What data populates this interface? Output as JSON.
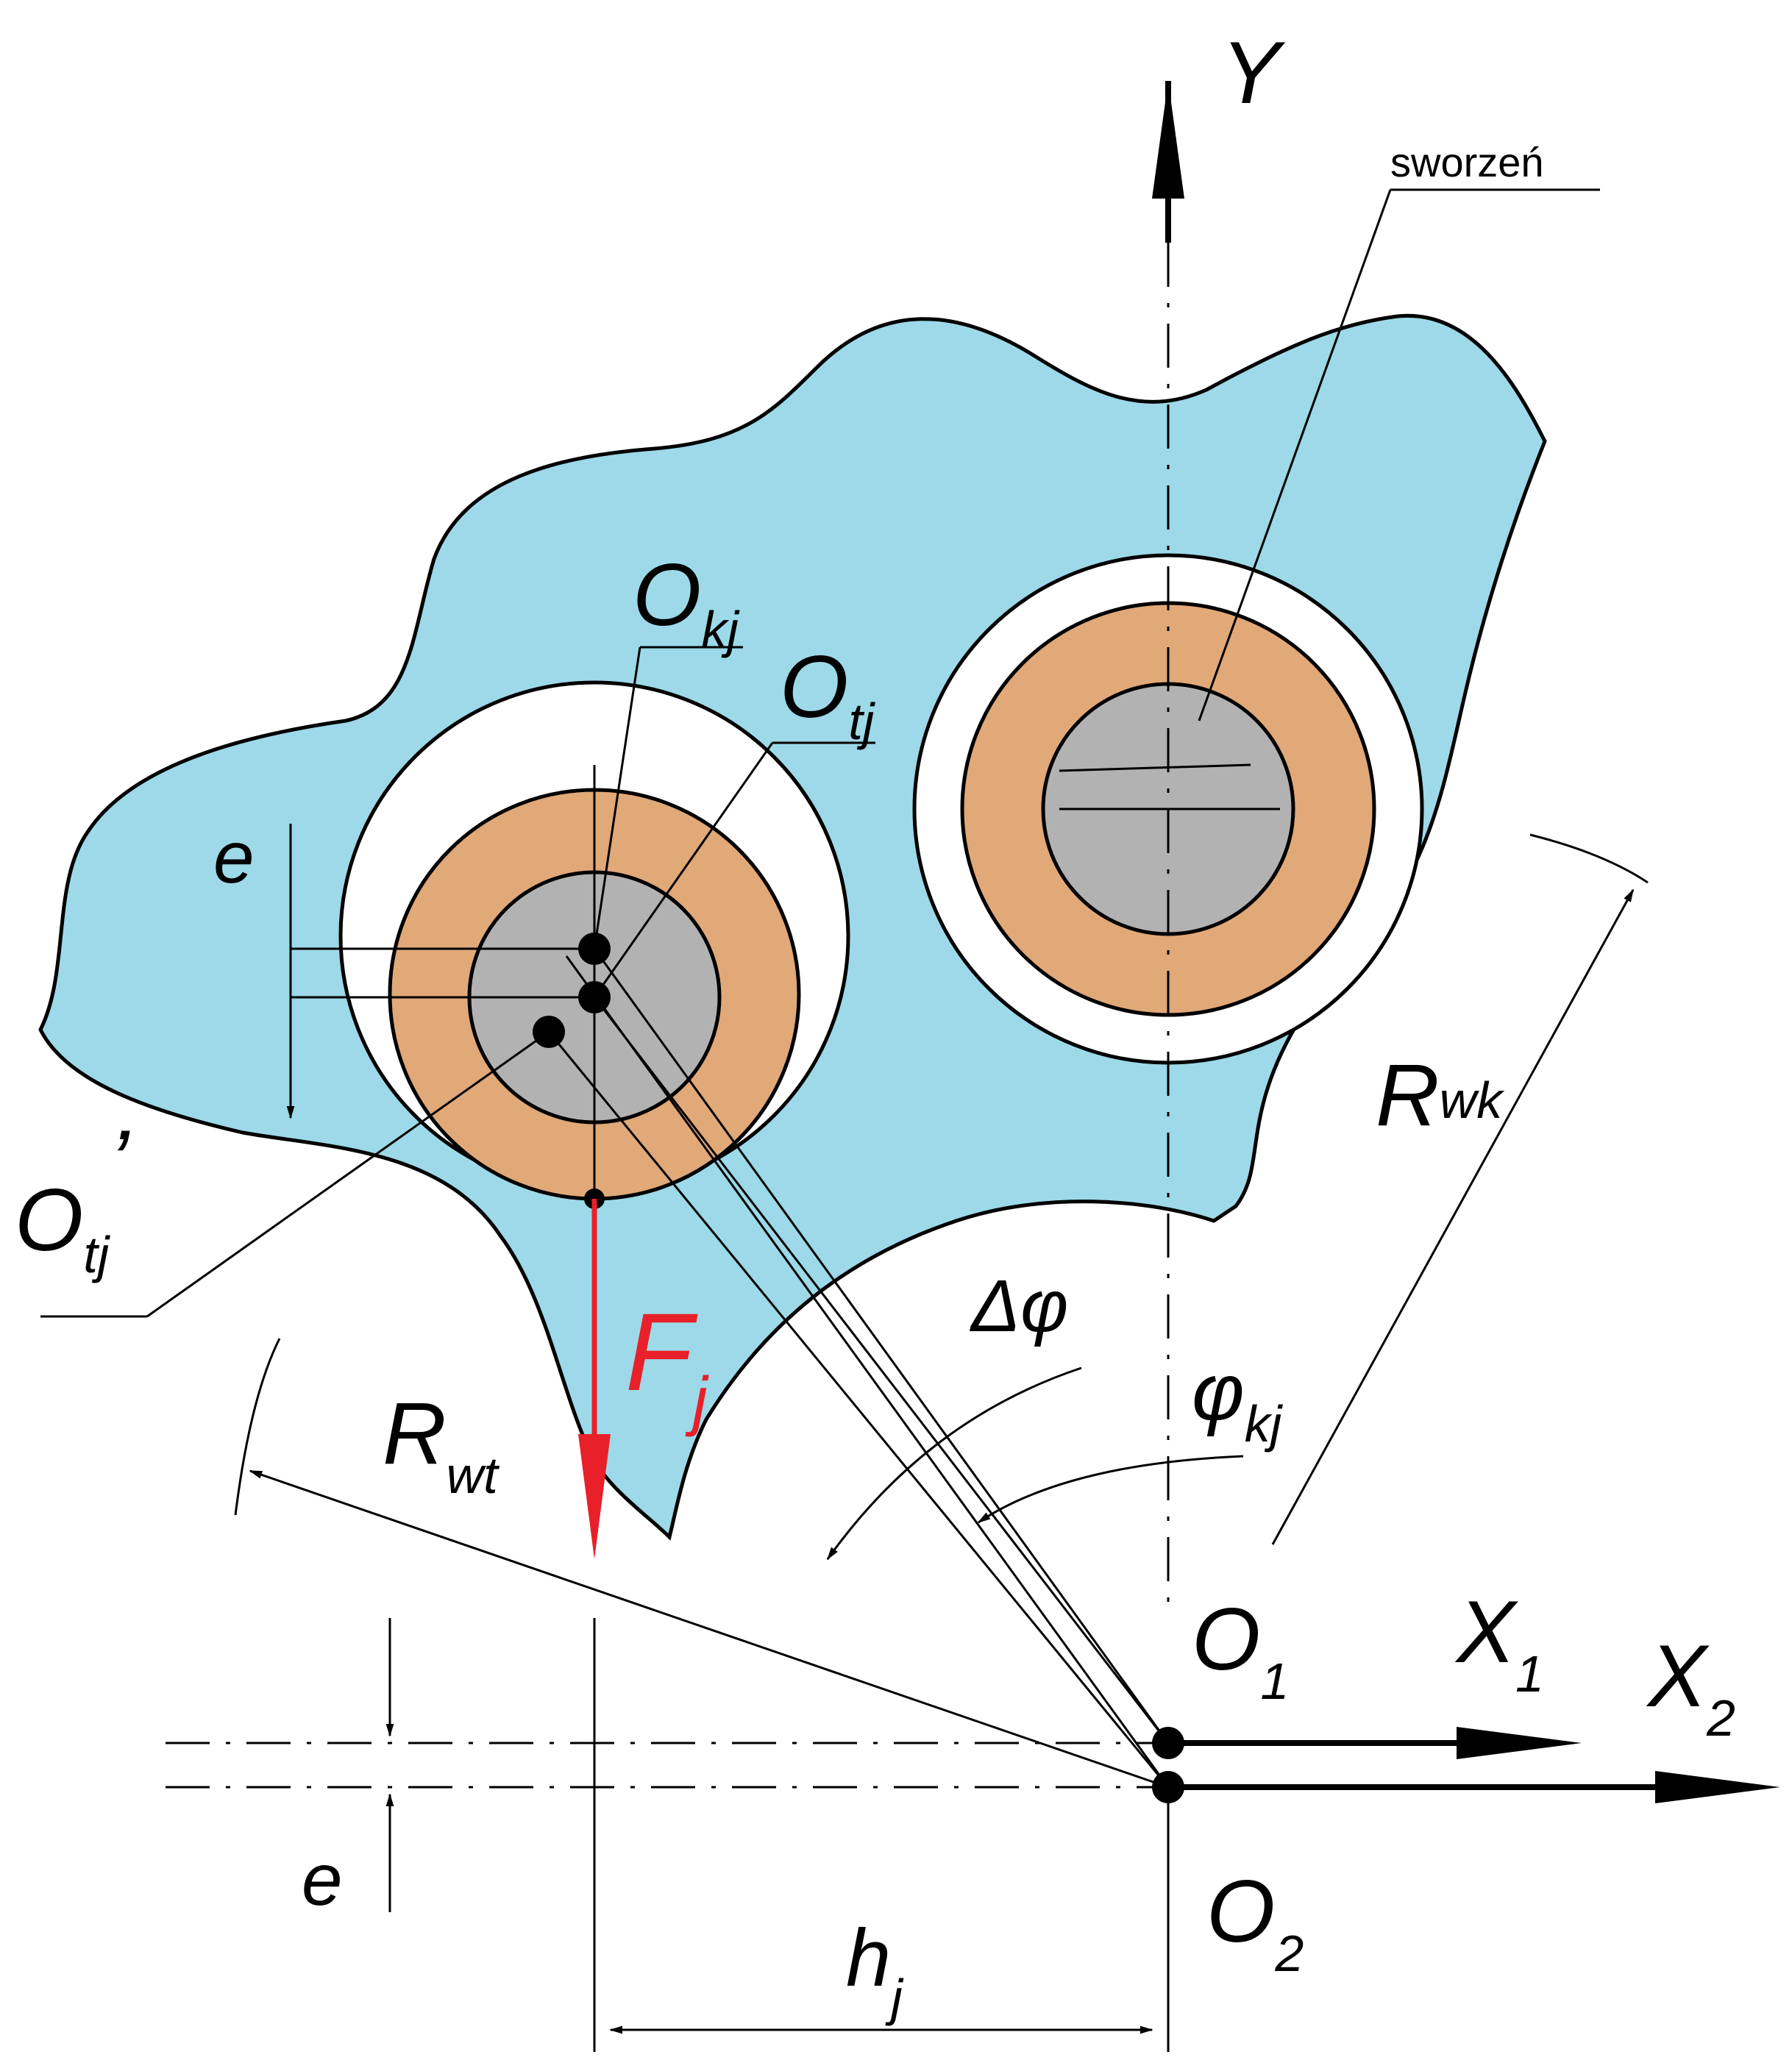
{
  "colors": {
    "body": "#9dd9e8",
    "outer_sleeve": "#e1a878",
    "pin": "#b2b2b2",
    "force": "#e8202a",
    "line": "#000000"
  },
  "labels": {
    "pin_callout": "sworzeń",
    "axis_y": "Y",
    "axis_x1": {
      "base": "X",
      "sub": "1"
    },
    "axis_x2": {
      "base": "X",
      "sub": "2"
    },
    "center_o1": {
      "base": "O",
      "sub": "1"
    },
    "center_o2": {
      "base": "O",
      "sub": "2"
    },
    "o_kj": {
      "base": "O",
      "sub": "kj"
    },
    "o_tj": {
      "base": "O",
      "sub": "tj"
    },
    "o_tj_prime": {
      "base": "O",
      "sub": "tj",
      "prime": "’"
    },
    "r_wk": {
      "base": "R",
      "sub": "wk"
    },
    "r_wt": {
      "base": "R",
      "sub": "wt"
    },
    "force": {
      "base": "F",
      "sub": "j"
    },
    "delta_phi": "Δφ",
    "phi_kj": {
      "base": "φ",
      "sub": "kj"
    },
    "eccentricity_top": "e",
    "eccentricity_bottom": "e",
    "h_j": {
      "base": "h",
      "sub": "j"
    }
  }
}
